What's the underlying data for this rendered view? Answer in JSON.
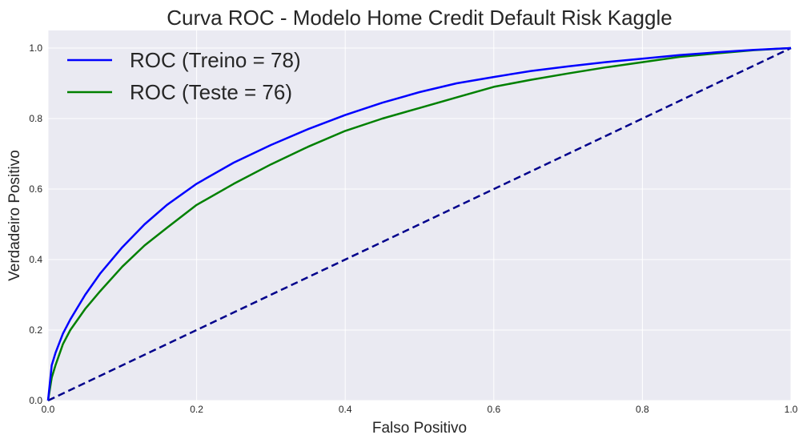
{
  "chart_data": {
    "type": "line",
    "title": "Curva ROC - Modelo Home Credit Default Risk Kaggle",
    "xlabel": "Falso Positivo",
    "ylabel": "Verdadeiro Positivo",
    "xlim": [
      0.0,
      1.0
    ],
    "ylim": [
      0.0,
      1.05
    ],
    "xticks": [
      "0.0",
      "0.2",
      "0.4",
      "0.6",
      "0.8",
      "1.0"
    ],
    "yticks": [
      "0.0",
      "0.2",
      "0.4",
      "0.6",
      "0.8",
      "1.0"
    ],
    "grid": true,
    "legend_position": "top-left",
    "background_color": "#eaeaf2",
    "series": [
      {
        "name": "ROC (Treino = 78)",
        "color": "#0000ff",
        "style": "solid",
        "x": [
          0,
          0.005,
          0.01,
          0.02,
          0.03,
          0.05,
          0.07,
          0.1,
          0.13,
          0.16,
          0.2,
          0.25,
          0.3,
          0.35,
          0.4,
          0.45,
          0.5,
          0.55,
          0.6,
          0.65,
          0.7,
          0.75,
          0.8,
          0.85,
          0.9,
          0.95,
          1.0
        ],
        "y": [
          0,
          0.1,
          0.135,
          0.19,
          0.23,
          0.3,
          0.36,
          0.435,
          0.5,
          0.555,
          0.615,
          0.675,
          0.725,
          0.77,
          0.81,
          0.845,
          0.875,
          0.9,
          0.918,
          0.935,
          0.948,
          0.96,
          0.97,
          0.98,
          0.988,
          0.995,
          1.0
        ]
      },
      {
        "name": "ROC (Teste = 76)",
        "color": "#008000",
        "style": "solid",
        "x": [
          0,
          0.005,
          0.01,
          0.02,
          0.03,
          0.05,
          0.07,
          0.1,
          0.13,
          0.16,
          0.2,
          0.25,
          0.3,
          0.35,
          0.4,
          0.45,
          0.5,
          0.55,
          0.6,
          0.65,
          0.7,
          0.75,
          0.8,
          0.85,
          0.9,
          0.95,
          1.0
        ],
        "y": [
          0,
          0.065,
          0.1,
          0.16,
          0.2,
          0.26,
          0.31,
          0.38,
          0.44,
          0.49,
          0.555,
          0.615,
          0.67,
          0.72,
          0.765,
          0.8,
          0.83,
          0.86,
          0.89,
          0.91,
          0.928,
          0.945,
          0.96,
          0.975,
          0.985,
          0.994,
          1.0
        ]
      },
      {
        "name": "",
        "color": "#00008b",
        "style": "dashed",
        "x": [
          0,
          1.0
        ],
        "y": [
          0,
          1.0
        ]
      }
    ]
  }
}
